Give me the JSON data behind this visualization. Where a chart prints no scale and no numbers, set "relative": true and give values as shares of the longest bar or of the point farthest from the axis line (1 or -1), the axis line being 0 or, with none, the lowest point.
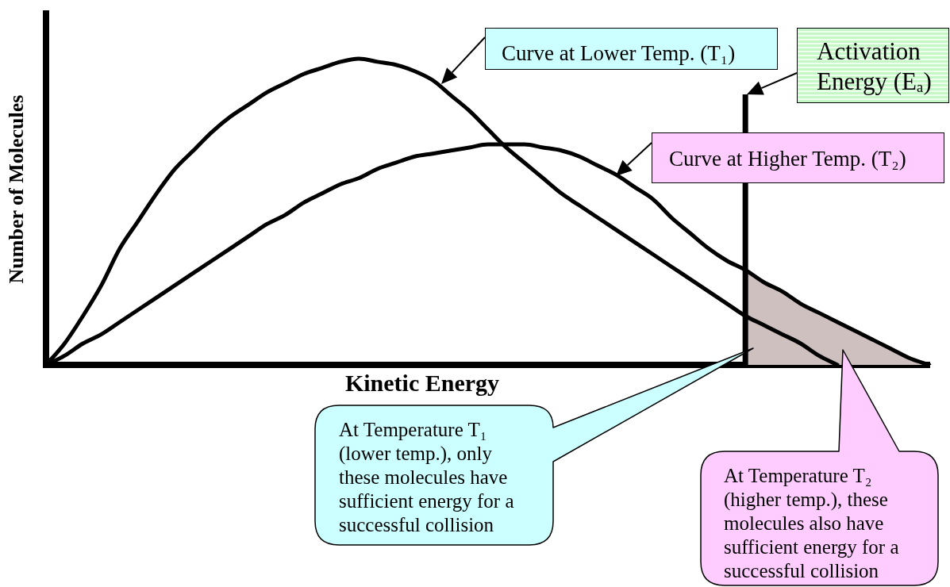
{
  "chart_data": {
    "type": "line",
    "xlabel": "Kinetic Energy",
    "ylabel": "Number of Molecules",
    "relative": true,
    "categories": [
      null,
      null,
      null,
      null,
      null,
      null,
      null,
      null,
      null,
      null,
      null,
      null,
      null,
      null,
      null,
      null,
      null,
      null,
      null,
      null,
      null,
      null,
      null,
      null,
      null,
      null,
      null,
      null,
      null,
      null,
      null,
      null,
      null,
      null,
      null,
      null,
      null,
      null,
      null,
      null,
      null,
      null,
      null,
      null,
      null,
      null,
      null,
      null,
      null
    ],
    "series": [
      {
        "name": "Curve at Lower Temp. (T₁)",
        "color": "#000000",
        "values": [
          0,
          0.07,
          0.16,
          0.26,
          0.38,
          0.47,
          0.56,
          0.64,
          0.7,
          0.76,
          0.81,
          0.85,
          0.89,
          0.92,
          0.95,
          0.97,
          0.99,
          1,
          0.99,
          0.98,
          0.96,
          0.93,
          0.88,
          0.83,
          0.77,
          0.71,
          0.66,
          0.61,
          0.56,
          0.52,
          0.48,
          0.44,
          0.4,
          0.36,
          0.32,
          0.28,
          0.24,
          0.2,
          0.16,
          0.13,
          0.1,
          0.07,
          0.03,
          0,
          null,
          null,
          null,
          null,
          null
        ]
      },
      {
        "name": "Curve at Higher Temp. (T₂)",
        "color": "#000000",
        "values": [
          0,
          0.03,
          0.07,
          0.1,
          0.14,
          0.18,
          0.22,
          0.26,
          0.3,
          0.34,
          0.38,
          0.42,
          0.46,
          0.49,
          0.53,
          0.56,
          0.59,
          0.61,
          0.64,
          0.66,
          0.68,
          0.69,
          0.7,
          0.71,
          0.72,
          0.72,
          0.72,
          0.71,
          0.7,
          0.68,
          0.65,
          0.62,
          0.58,
          0.54,
          0.48,
          0.43,
          0.38,
          0.34,
          0.31,
          0.27,
          0.24,
          0.2,
          0.17,
          0.14,
          0.11,
          0.08,
          0.05,
          0.02,
          0
        ]
      },
      {
        "type": "area",
        "color": "#cfc0c0",
        "values": [
          null,
          null,
          null,
          null,
          null,
          null,
          null,
          null,
          null,
          null,
          null,
          null,
          null,
          null,
          null,
          null,
          null,
          null,
          null,
          null,
          null,
          null,
          null,
          null,
          null,
          null,
          null,
          null,
          null,
          null,
          null,
          null,
          null,
          null,
          null,
          null,
          null,
          null,
          0.31,
          0.27,
          0.24,
          0.2,
          0.17,
          0.14,
          0.11,
          0.08,
          0.05,
          0.02,
          0
        ]
      }
    ],
    "annotations": [
      "Activation Energy (Eₐ)",
      "At Temperature T₁ (lower temp.), only these molecules have sufficient energy for a successful collision",
      "At Temperature T₂ (higher temp.), these molecules also have sufficient energy for a successful collision"
    ],
    "legend": "top right",
    "grid": false,
    "marker": "none",
    "line_style": "solid",
    "tick_labels": false
  }
}
